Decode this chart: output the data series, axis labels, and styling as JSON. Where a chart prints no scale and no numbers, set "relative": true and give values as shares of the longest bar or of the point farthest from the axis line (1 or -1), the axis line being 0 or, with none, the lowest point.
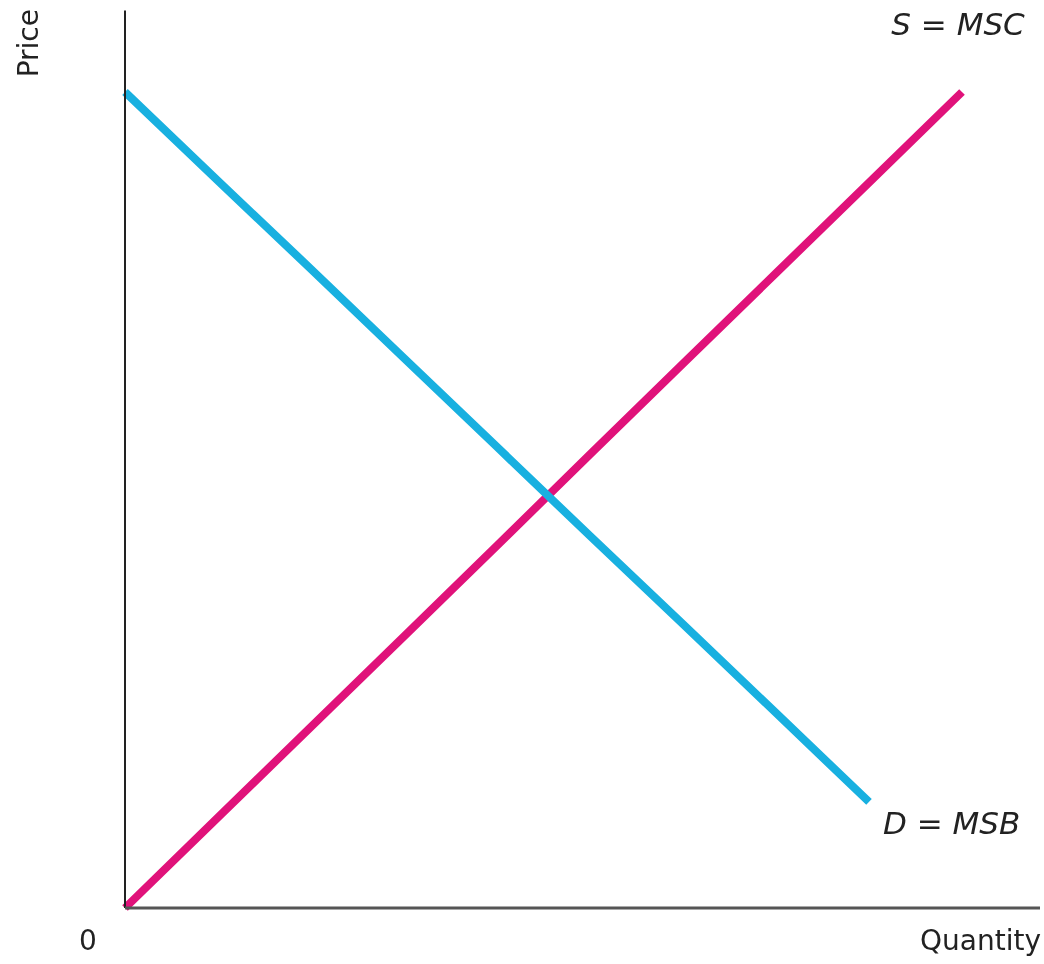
{
  "chart_data": {
    "type": "line",
    "relative": true,
    "xlabel": "Quantity",
    "ylabel": "Price",
    "line_style": "solid",
    "annotations": [
      "0"
    ],
    "categories": [
      null,
      null,
      null,
      null,
      null,
      null,
      null,
      null,
      null,
      null
    ],
    "series": [
      {
        "name": "S = MSC",
        "color": "#e0127a",
        "values": [
          0,
          0.111,
          0.222,
          0.333,
          0.444,
          0.556,
          0.667,
          0.778,
          0.889,
          1
        ]
      },
      {
        "name": "D = MSB",
        "color": "#18b0e0",
        "values": [
          1,
          0.891,
          0.783,
          0.674,
          0.565,
          0.456,
          0.348,
          0.239,
          0.13,
          null
        ]
      }
    ]
  }
}
